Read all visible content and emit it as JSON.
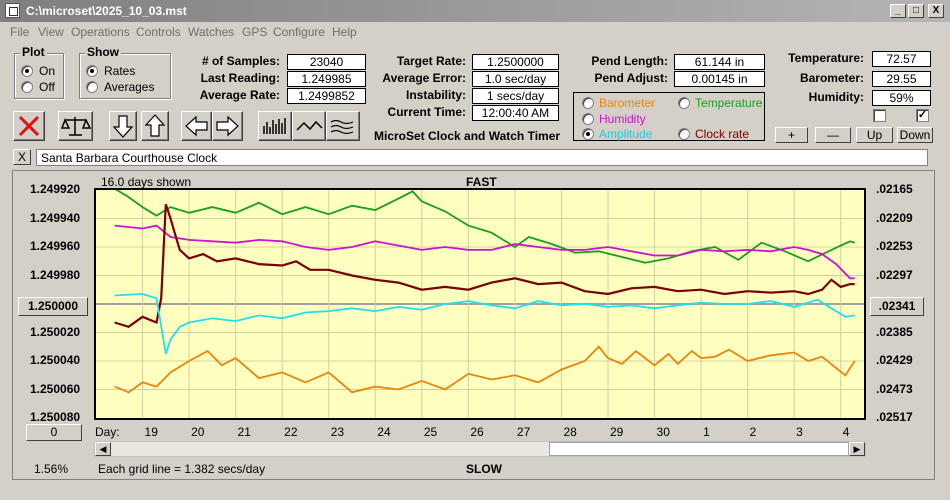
{
  "window": {
    "title": "C:\\microset\\2025_10_03.mst",
    "min_label": "_",
    "max_label": "□",
    "close_label": "X"
  },
  "menu": [
    "File",
    "View",
    "Operations",
    "Controls",
    "Watches",
    "GPS",
    "Configure",
    "Help"
  ],
  "plot_group": {
    "label": "Plot",
    "on": "On",
    "off": "Off",
    "selected": "On"
  },
  "show_group": {
    "label": "Show",
    "rates": "Rates",
    "averages": "Averages",
    "selected": "Rates"
  },
  "stats": {
    "samples_label": "# of Samples:",
    "samples": "23040",
    "last_reading_label": "Last Reading:",
    "last_reading": "1.249985",
    "average_rate_label": "Average Rate:",
    "average_rate": "1.2499852",
    "target_rate_label": "Target Rate:",
    "target_rate": "1.2500000",
    "average_error_label": "Average Error:",
    "average_error": "1.0 sec/day",
    "instability_label": "Instability:",
    "instability": "1 secs/day",
    "current_time_label": "Current Time:",
    "current_time": "12:00:40 AM",
    "pend_length_label": "Pend Length:",
    "pend_length": "61.144 in",
    "pend_adjust_label": "Pend Adjust:",
    "pend_adjust": "0.00145 in",
    "temperature_label": "Temperature:",
    "temperature": "72.57",
    "barometer_label": "Barometer:",
    "barometer": "29.55",
    "humidity_label": "Humidity:",
    "humidity": "59%"
  },
  "app_caption": "MicroSet Clock and Watch Timer",
  "traces": {
    "barometer": {
      "label": "Barometer",
      "color": "#e8850a"
    },
    "temperature": {
      "label": "Temperature",
      "color": "#18a018"
    },
    "humidity": {
      "label": "Humidity",
      "color": "#d010d0"
    },
    "amplitude": {
      "label": "Amplitude",
      "color": "#20e0f0",
      "selected": true
    },
    "clock_rate": {
      "label": "Clock rate",
      "color": "#7a0000"
    }
  },
  "small_buttons": {
    "plus": "+",
    "minus": "—",
    "up": "Up",
    "down": "Down"
  },
  "checkboxes": {
    "left_checked": false,
    "right_checked": true,
    "check_mark": "✓"
  },
  "watch": {
    "close_label": "X",
    "name": "Santa Barbara Courthouse Clock"
  },
  "chart_info": {
    "days_shown": "16.0 days shown",
    "top_label": "FAST",
    "bottom_label": "SLOW",
    "center_button": "1.250000",
    "right_center_button": ".02341",
    "left_bottom_button": "0",
    "percent": "1.56%",
    "grid_note": "Each grid line = 1.382 secs/day",
    "day_label": "Day:"
  },
  "chart_data": {
    "type": "line",
    "x_axis": {
      "label": "Day:",
      "ticks": [
        "19",
        "20",
        "21",
        "22",
        "23",
        "24",
        "25",
        "26",
        "27",
        "28",
        "29",
        "30",
        "1",
        "2",
        "3",
        "4"
      ]
    },
    "y_left": {
      "ticks": [
        "1.249920",
        "1.249940",
        "1.249960",
        "1.249980",
        "1.250000",
        "1.250020",
        "1.250040",
        "1.250060",
        "1.250080"
      ]
    },
    "y_right": {
      "ticks": [
        ".02165",
        ".02209",
        ".02253",
        ".02297",
        ".02341",
        ".02385",
        ".02429",
        ".02473",
        ".02517"
      ]
    },
    "ylim": [
      1.24992,
      1.25008
    ],
    "grid": true,
    "series": [
      {
        "key": "temperature",
        "color": "#18a018",
        "x": [
          18.4,
          18.7,
          19.0,
          19.3,
          19.6,
          20.0,
          20.5,
          21.0,
          21.5,
          22.0,
          22.5,
          23.0,
          23.5,
          24.0,
          24.5,
          24.8,
          25.0,
          25.5,
          26.0,
          26.5,
          27.0,
          27.3,
          27.8,
          28.3,
          28.8,
          29.3,
          29.8,
          30.3,
          30.8,
          31.3,
          31.8,
          32.3,
          32.8,
          33.3,
          33.8,
          34.2,
          34.3
        ],
        "y": [
          1.249919,
          1.249925,
          1.249932,
          1.249938,
          1.249932,
          1.249936,
          1.249932,
          1.249936,
          1.249929,
          1.249937,
          1.249932,
          1.249937,
          1.249931,
          1.249934,
          1.249926,
          1.249921,
          1.249928,
          1.249935,
          1.249945,
          1.24995,
          1.24996,
          1.249953,
          1.249958,
          1.249964,
          1.249963,
          1.249967,
          1.249971,
          1.249968,
          1.249963,
          1.24996,
          1.249969,
          1.249957,
          1.249963,
          1.24997,
          1.249962,
          1.249956,
          1.249957
        ]
      },
      {
        "key": "humidity",
        "color": "#d010d0",
        "x": [
          18.4,
          19.0,
          19.3,
          19.6,
          20.0,
          20.5,
          21.0,
          21.5,
          22.0,
          22.5,
          23.0,
          23.5,
          24.0,
          24.5,
          25.0,
          25.5,
          26.0,
          26.5,
          27.0,
          27.5,
          28.0,
          28.5,
          29.0,
          29.5,
          30.0,
          30.5,
          31.0,
          31.5,
          32.0,
          32.5,
          33.0,
          33.3,
          33.6,
          33.9,
          34.2,
          34.3
        ],
        "y": [
          1.249945,
          1.249947,
          1.249945,
          1.249953,
          1.249955,
          1.249956,
          1.249957,
          1.249955,
          1.249956,
          1.24996,
          1.249962,
          1.24996,
          1.249956,
          1.249959,
          1.249962,
          1.24996,
          1.249962,
          1.249962,
          1.249958,
          1.24996,
          1.249962,
          1.249962,
          1.24996,
          1.249963,
          1.249966,
          1.249966,
          1.249962,
          1.249963,
          1.249962,
          1.249963,
          1.24996,
          1.249962,
          1.249965,
          1.249972,
          1.249982,
          1.249982
        ]
      },
      {
        "key": "clock_rate",
        "color": "#7a0000",
        "x": [
          18.4,
          18.7,
          19.0,
          19.3,
          19.4,
          19.5,
          19.6,
          19.7,
          19.8,
          20.0,
          20.3,
          20.6,
          21.0,
          21.5,
          22.0,
          22.3,
          22.6,
          23.0,
          23.5,
          24.0,
          24.5,
          25.0,
          25.5,
          26.0,
          26.5,
          27.0,
          27.5,
          28.0,
          28.5,
          29.0,
          29.5,
          30.0,
          30.5,
          31.0,
          31.5,
          32.0,
          32.5,
          33.0,
          33.3,
          33.6,
          33.8,
          34.0,
          34.2,
          34.3
        ],
        "y": [
          1.250013,
          1.250016,
          1.250009,
          1.250013,
          1.249996,
          1.24993,
          1.24994,
          1.249951,
          1.249962,
          1.249968,
          1.249965,
          1.24997,
          1.249968,
          1.249972,
          1.249973,
          1.24997,
          1.249976,
          1.249976,
          1.24998,
          1.249983,
          1.249985,
          1.24999,
          1.249988,
          1.24999,
          1.249985,
          1.249982,
          1.249986,
          1.249985,
          1.249991,
          1.249993,
          1.249989,
          1.249988,
          1.249991,
          1.24999,
          1.249993,
          1.249991,
          1.249992,
          1.249991,
          1.249993,
          1.24999,
          1.249983,
          1.249988,
          1.249986,
          1.249986
        ]
      },
      {
        "key": "amplitude",
        "color": "#20e0f0",
        "x": [
          18.4,
          19.0,
          19.3,
          19.5,
          19.6,
          19.8,
          20.0,
          20.5,
          21.0,
          21.5,
          22.0,
          22.5,
          23.0,
          23.5,
          24.0,
          24.5,
          25.0,
          25.5,
          26.0,
          26.5,
          27.0,
          27.5,
          28.0,
          28.5,
          29.0,
          29.5,
          30.0,
          30.5,
          31.0,
          31.5,
          32.0,
          32.5,
          33.0,
          33.5,
          33.8,
          34.1,
          34.3
        ],
        "y": [
          1.249994,
          1.249993,
          1.249996,
          1.250035,
          1.250025,
          1.250016,
          1.250013,
          1.25001,
          1.250012,
          1.250008,
          1.25001,
          1.250006,
          1.250005,
          1.250003,
          1.250005,
          1.250002,
          1.250004,
          1.25,
          1.249998,
          1.250001,
          1.250003,
          1.249998,
          1.250001,
          1.25,
          1.250002,
          1.250001,
          1.250003,
          1.250001,
          1.249999,
          1.25,
          1.25,
          1.249998,
          1.250002,
          1.249997,
          1.250003,
          1.250009,
          1.250008
        ]
      },
      {
        "key": "barometer",
        "color": "#e8850a",
        "x": [
          18.4,
          18.7,
          19.0,
          19.3,
          19.6,
          20.0,
          20.4,
          20.7,
          21.0,
          21.5,
          22.0,
          22.5,
          23.0,
          23.5,
          24.0,
          24.5,
          25.0,
          25.5,
          26.0,
          26.5,
          27.0,
          27.5,
          28.0,
          28.5,
          28.8,
          29.0,
          29.3,
          29.6,
          30.0,
          30.3,
          30.5,
          30.8,
          31.0,
          31.3,
          31.6,
          32.0,
          32.5,
          33.0,
          33.3,
          33.6,
          33.9,
          34.1,
          34.3
        ],
        "y": [
          1.250058,
          1.250062,
          1.250055,
          1.250058,
          1.250048,
          1.25004,
          1.250033,
          1.250043,
          1.250038,
          1.250052,
          1.250048,
          1.250055,
          1.250048,
          1.250062,
          1.250058,
          1.25006,
          1.250054,
          1.25006,
          1.250049,
          1.250053,
          1.25005,
          1.250055,
          1.250046,
          1.25004,
          1.25003,
          1.250038,
          1.250042,
          1.250033,
          1.250043,
          1.250035,
          1.250042,
          1.250033,
          1.250038,
          1.250037,
          1.250032,
          1.25004,
          1.250036,
          1.250034,
          1.25004,
          1.250037,
          1.250045,
          1.25005,
          1.25004
        ]
      }
    ]
  }
}
